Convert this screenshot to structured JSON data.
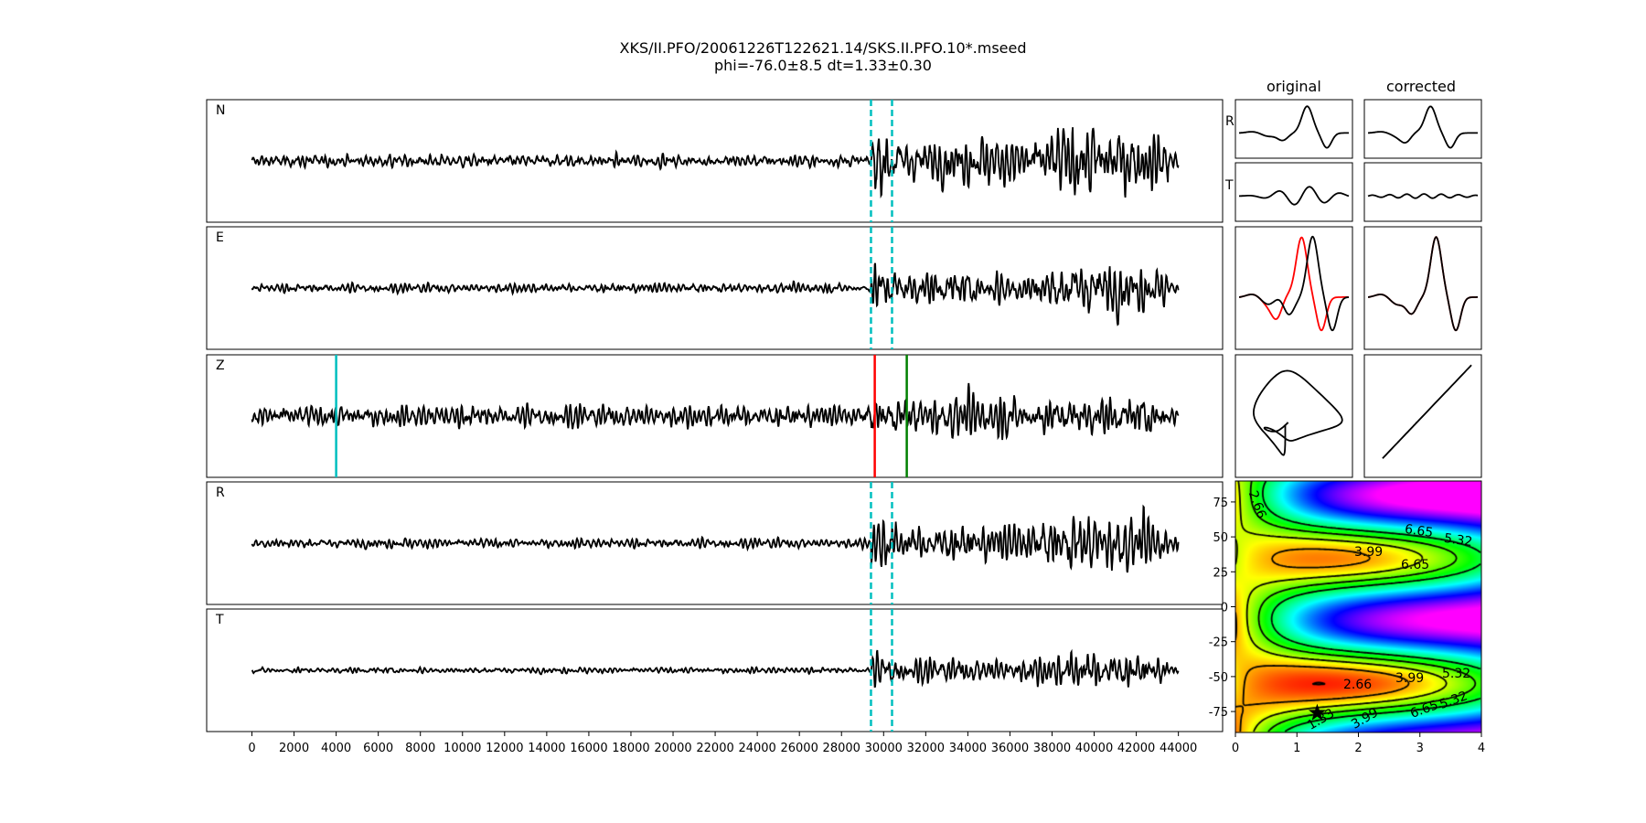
{
  "title": {
    "line1": "XKS/II.PFO/20061226T122621.14/SKS.II.PFO.10*.mseed",
    "line2": "phi=-76.0±8.5 dt=1.33±0.30"
  },
  "subplot_titles": {
    "original": "original",
    "corrected": "corrected"
  },
  "chart_data": {
    "type": "line",
    "traces": {
      "components": [
        "N",
        "E",
        "Z",
        "R",
        "T"
      ],
      "x_ticks": [
        0,
        2000,
        4000,
        6000,
        8000,
        10000,
        12000,
        14000,
        16000,
        18000,
        20000,
        22000,
        24000,
        26000,
        28000,
        30000,
        32000,
        34000,
        36000,
        38000,
        40000,
        42000,
        44000
      ],
      "xlim": [
        -2150,
        46100
      ],
      "line_color": "#000000"
    },
    "analysis_window": {
      "start": 29400,
      "end": 30400,
      "color": "#00bfbf",
      "style": "dashed"
    },
    "picks": [
      {
        "x": 4000,
        "color": "#00bfbf"
      },
      {
        "x": 29580,
        "color": "#ff0000"
      },
      {
        "x": 31100,
        "color": "#008000"
      }
    ],
    "small_panel_labels": [
      "R",
      "T"
    ],
    "overlay_colors": {
      "first": "#ff0000",
      "second": "#000000"
    },
    "grid_search": {
      "type": "heatmap",
      "xlim": [
        0,
        4
      ],
      "ylim": [
        -90,
        90
      ],
      "x_ticks": [
        0,
        1,
        2,
        3,
        4
      ],
      "y_ticks": [
        75,
        50,
        25,
        0,
        -25,
        -50,
        -75
      ],
      "contour_levels": [
        1.33,
        2.66,
        3.99,
        5.32,
        6.65
      ],
      "contour_labels": [
        "2.66",
        "6.65",
        "5.32",
        "3.99",
        "6.65",
        "5.32",
        "3.99",
        "2.66",
        "1.33",
        "3.99",
        "6.65",
        "5.32"
      ],
      "best": {
        "dt": 1.33,
        "phi": -76.0
      },
      "colormap": "rainbow (red low → magenta high)"
    }
  }
}
